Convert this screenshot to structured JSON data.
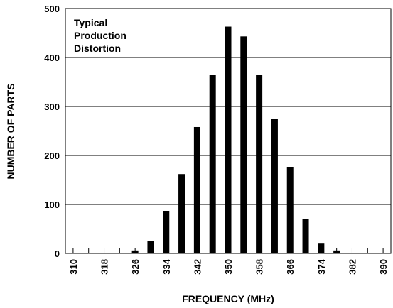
{
  "chart_data": {
    "type": "bar",
    "annotation": [
      "Typical",
      "Production",
      "Distortion"
    ],
    "xlabel": "FREQUENCY (MHz)",
    "ylabel": "NUMBER OF PARTS",
    "xlim": [
      308,
      392
    ],
    "ylim": [
      0,
      500
    ],
    "x_ticks": [
      310,
      318,
      326,
      334,
      342,
      350,
      358,
      366,
      374,
      382,
      390
    ],
    "y_ticks": [
      0,
      100,
      200,
      300,
      400,
      500
    ],
    "grid_y": [
      0,
      50,
      100,
      150,
      200,
      250,
      300,
      350,
      400,
      450,
      500
    ],
    "x": [
      318,
      322,
      326,
      330,
      334,
      338,
      342,
      346,
      350,
      354,
      358,
      362,
      366,
      370,
      374,
      378
    ],
    "values": [
      0,
      1,
      6,
      26,
      86,
      162,
      258,
      365,
      463,
      443,
      365,
      275,
      176,
      70,
      20,
      6
    ],
    "bar_color": "#000000",
    "grid_color": "#000000"
  }
}
